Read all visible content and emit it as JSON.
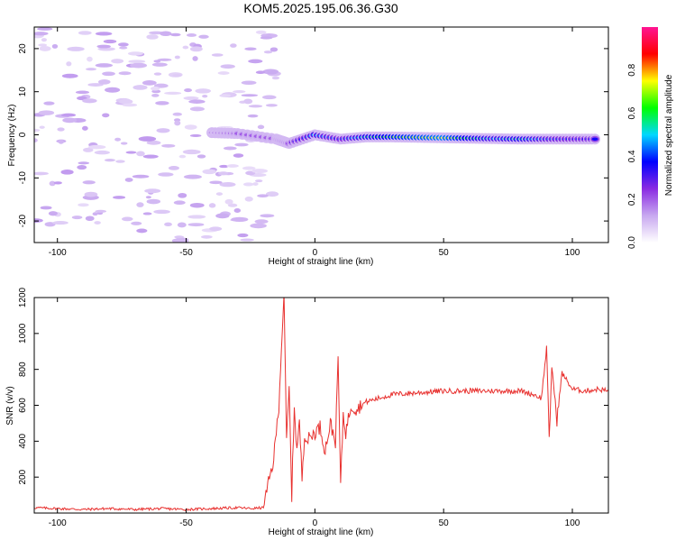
{
  "page": {
    "title": "KOM5.2025.195.06.36.G30"
  },
  "chart_data": [
    {
      "type": "heatmap",
      "title": "KOM5.2025.195.06.36.G30",
      "xlabel": "Height of straight line (km)",
      "ylabel": "Frequency (Hz)",
      "xlim": [
        -109,
        114
      ],
      "ylim": [
        -25,
        25
      ],
      "xticks": [
        -100,
        -50,
        0,
        50,
        100
      ],
      "yticks": [
        -20,
        -10,
        0,
        10,
        20
      ],
      "colorbar": {
        "label": "Normalized spectral amplitude",
        "range": [
          0,
          1
        ],
        "ticks": [
          "0.0",
          "0.2",
          "0.4",
          "0.6",
          "0.8"
        ],
        "colors": [
          "#ffffff",
          "#c8a8f0",
          "#8a2be2",
          "#0000ff",
          "#00d8ff",
          "#00ff00",
          "#ffff00",
          "#ff0000",
          "#ff1493"
        ]
      },
      "ridge": [
        {
          "x": -40,
          "y": 0.5,
          "amp": 0.15
        },
        {
          "x": -30,
          "y": 0.3,
          "amp": 0.2
        },
        {
          "x": -15,
          "y": -1,
          "amp": 0.2
        },
        {
          "x": -10,
          "y": -2,
          "amp": 0.25
        },
        {
          "x": 0,
          "y": 0,
          "amp": 0.5
        },
        {
          "x": 10,
          "y": -1,
          "amp": 0.4
        },
        {
          "x": 20,
          "y": -0.5,
          "amp": 0.55
        },
        {
          "x": 30,
          "y": -0.5,
          "amp": 0.65
        },
        {
          "x": 40,
          "y": -0.6,
          "amp": 0.7
        },
        {
          "x": 50,
          "y": -0.7,
          "amp": 0.75
        },
        {
          "x": 60,
          "y": -0.8,
          "amp": 0.6
        },
        {
          "x": 70,
          "y": -0.9,
          "amp": 0.5
        },
        {
          "x": 80,
          "y": -1,
          "amp": 0.55
        },
        {
          "x": 90,
          "y": -1,
          "amp": 0.45
        },
        {
          "x": 100,
          "y": -1,
          "amp": 0.4
        },
        {
          "x": 110,
          "y": -1,
          "amp": 0.35
        }
      ]
    },
    {
      "type": "line",
      "xlabel": "Height of straight line (km)",
      "ylabel": "SNR (v/v)",
      "xlim": [
        -109,
        114
      ],
      "ylim": [
        0,
        1200
      ],
      "xticks": [
        -100,
        -50,
        0,
        50,
        100
      ],
      "yticks": [
        200,
        400,
        600,
        800,
        1000,
        1200
      ],
      "color": "#e8312f",
      "series": [
        {
          "x": [
            -109,
            -100,
            -90,
            -80,
            -70,
            -60,
            -50,
            -40,
            -30,
            -25,
            -20,
            -16,
            -14,
            -12,
            -11,
            -10,
            -9,
            -8,
            -7,
            -6,
            -5,
            -4,
            -3,
            -2,
            0,
            2,
            4,
            6,
            8,
            9,
            10,
            11,
            12,
            14,
            16,
            18,
            20,
            25,
            30,
            40,
            50,
            60,
            70,
            80,
            85,
            88,
            90,
            91,
            92,
            94,
            96,
            100,
            105,
            110,
            114
          ],
          "y": [
            30,
            25,
            20,
            25,
            20,
            25,
            20,
            25,
            30,
            25,
            30,
            300,
            600,
            1220,
            400,
            700,
            100,
            600,
            350,
            500,
            200,
            450,
            400,
            420,
            450,
            480,
            350,
            500,
            400,
            870,
            150,
            550,
            450,
            600,
            580,
            600,
            620,
            640,
            660,
            670,
            680,
            680,
            680,
            680,
            660,
            640,
            920,
            400,
            820,
            520,
            780,
            690,
            680,
            690,
            680
          ]
        }
      ]
    }
  ]
}
